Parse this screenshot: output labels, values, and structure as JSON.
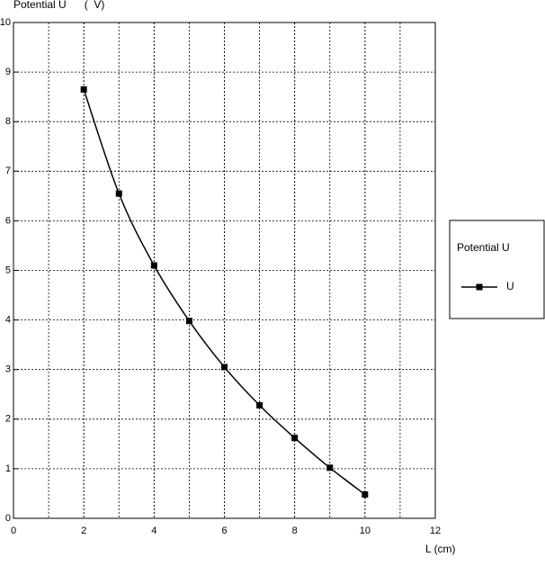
{
  "chart_data": {
    "type": "line",
    "y_label": "Potential U      (  V)",
    "x_label": "L (cm)",
    "x": [
      2,
      3,
      4,
      5,
      6,
      7,
      8,
      9,
      10
    ],
    "series": [
      {
        "name": "U",
        "color": "#000000",
        "values": [
          8.65,
          6.55,
          5.1,
          3.98,
          3.05,
          2.28,
          1.62,
          1.02,
          0.48
        ]
      }
    ],
    "legend_title": "Potential U",
    "legend": "right",
    "xlim": [
      0,
      12
    ],
    "xticks": [
      0,
      2,
      4,
      6,
      8,
      10,
      12
    ],
    "ylim": [
      0,
      10
    ],
    "yticks": [
      0,
      1,
      2,
      3,
      4,
      5,
      6,
      7,
      8,
      9,
      10
    ],
    "grid": true
  }
}
